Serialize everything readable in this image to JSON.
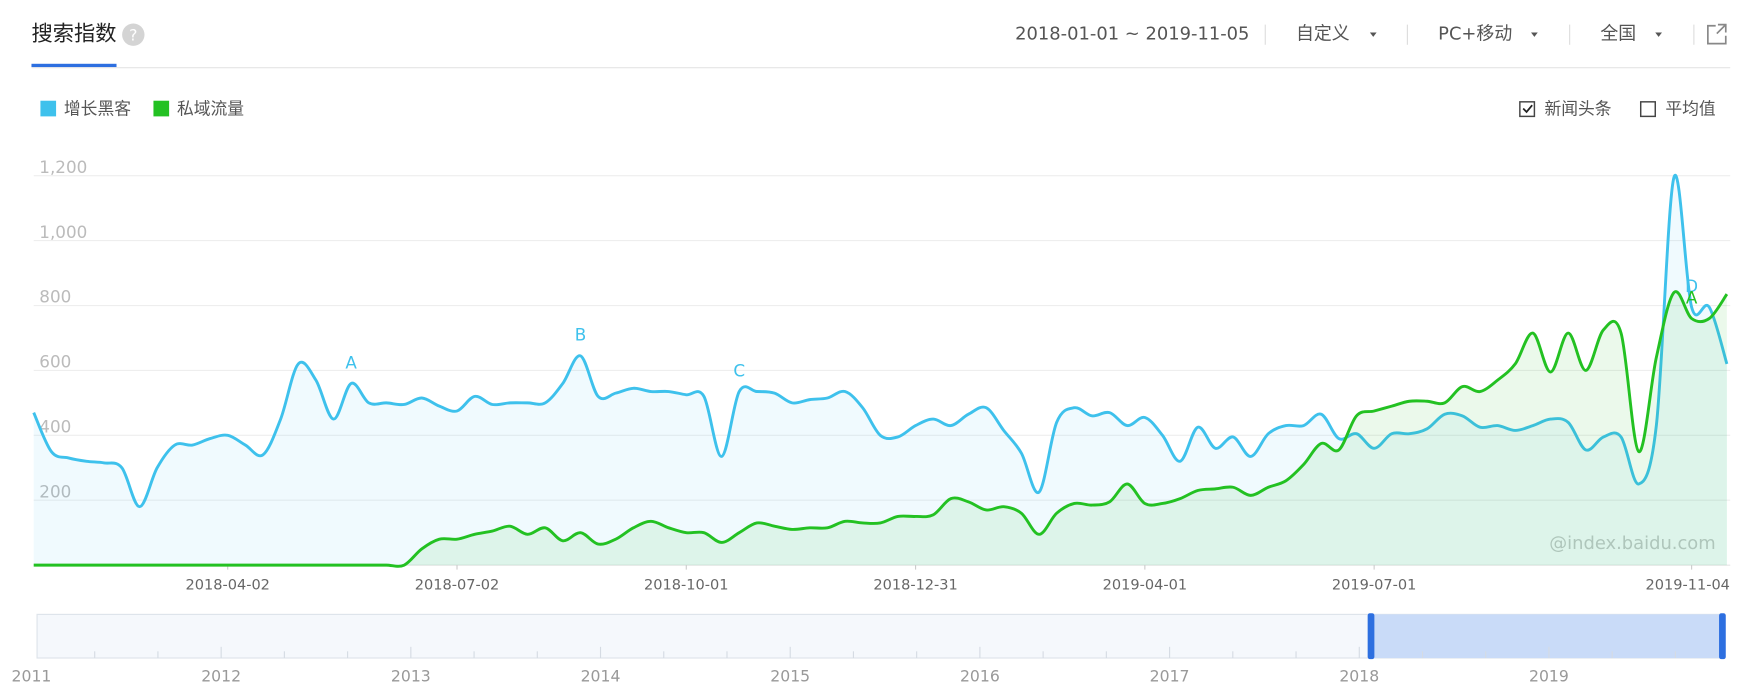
{
  "header": {
    "title": "搜索指数",
    "help": "?"
  },
  "controls": {
    "date_range": "2018-01-01 ~ 2019-11-05",
    "period": "自定义",
    "device": "PC+移动",
    "region": "全国"
  },
  "options": [
    {
      "label": "新闻头条",
      "checked": true
    },
    {
      "label": "平均值",
      "checked": false
    }
  ],
  "watermark": "@index.baidu.com",
  "navigator": {
    "years": [
      "2011",
      "2012",
      "2013",
      "2014",
      "2015",
      "2016",
      "2017",
      "2018",
      "2019"
    ]
  },
  "chart_data": {
    "type": "line",
    "x": [
      "2018-01-15",
      "2018-01-22",
      "2018-01-29",
      "2018-02-05",
      "2018-02-12",
      "2018-02-19",
      "2018-02-26",
      "2018-03-05",
      "2018-03-12",
      "2018-03-19",
      "2018-03-26",
      "2018-04-02",
      "2018-04-09",
      "2018-04-16",
      "2018-04-23",
      "2018-04-30",
      "2018-05-07",
      "2018-05-14",
      "2018-05-21",
      "2018-05-28",
      "2018-06-04",
      "2018-06-11",
      "2018-06-18",
      "2018-06-25",
      "2018-07-02",
      "2018-07-09",
      "2018-07-16",
      "2018-07-23",
      "2018-07-30",
      "2018-08-06",
      "2018-08-13",
      "2018-08-20",
      "2018-08-27",
      "2018-09-03",
      "2018-09-10",
      "2018-09-17",
      "2018-09-24",
      "2018-10-01",
      "2018-10-08",
      "2018-10-15",
      "2018-10-22",
      "2018-10-29",
      "2018-11-05",
      "2018-11-12",
      "2018-11-19",
      "2018-11-26",
      "2018-12-03",
      "2018-12-10",
      "2018-12-17",
      "2018-12-24",
      "2018-12-31",
      "2019-01-07",
      "2019-01-14",
      "2019-01-21",
      "2019-01-28",
      "2019-02-04",
      "2019-02-11",
      "2019-02-18",
      "2019-02-25",
      "2019-03-04",
      "2019-03-11",
      "2019-03-18",
      "2019-03-25",
      "2019-04-01",
      "2019-04-08",
      "2019-04-15",
      "2019-04-22",
      "2019-04-29",
      "2019-05-06",
      "2019-05-13",
      "2019-05-20",
      "2019-05-27",
      "2019-06-03",
      "2019-06-10",
      "2019-06-17",
      "2019-06-24",
      "2019-07-01",
      "2019-07-08",
      "2019-07-15",
      "2019-07-22",
      "2019-07-29",
      "2019-08-05",
      "2019-08-12",
      "2019-08-19",
      "2019-08-26",
      "2019-09-02",
      "2019-09-09",
      "2019-09-16",
      "2019-09-23",
      "2019-09-30",
      "2019-10-07",
      "2019-10-14",
      "2019-10-21",
      "2019-10-28",
      "2019-11-04",
      "2019-11-11",
      "2019-11-18"
    ],
    "xticks": [
      "2018-04-02",
      "2018-07-02",
      "2018-10-01",
      "2018-12-31",
      "2019-04-01",
      "2019-07-01",
      "2019-11-04"
    ],
    "ylim": [
      0,
      1200
    ],
    "yticks": [
      200,
      400,
      600,
      800,
      {
        "value": 1000,
        "label": "1,000"
      },
      {
        "value": 1200,
        "label": "1,200"
      }
    ],
    "grid": true,
    "series": [
      {
        "name": "增长黑客",
        "color": "#3ec1ec",
        "values": [
          470,
          350,
          330,
          320,
          315,
          300,
          180,
          300,
          370,
          370,
          390,
          400,
          370,
          340,
          450,
          620,
          570,
          450,
          560,
          500,
          500,
          495,
          515,
          490,
          475,
          520,
          495,
          500,
          500,
          500,
          560,
          645,
          520,
          530,
          545,
          535,
          535,
          525,
          520,
          335,
          535,
          535,
          530,
          500,
          510,
          515,
          535,
          485,
          400,
          395,
          430,
          450,
          430,
          465,
          485,
          415,
          345,
          225,
          440,
          485,
          460,
          470,
          430,
          455,
          400,
          320,
          425,
          360,
          395,
          335,
          405,
          430,
          430,
          465,
          390,
          405,
          360,
          405,
          405,
          420,
          465,
          460,
          425,
          430,
          415,
          430,
          450,
          440,
          355,
          395,
          395,
          250,
          430,
          1195,
          795,
          795,
          620
        ],
        "annotations": [
          {
            "label": "A",
            "x": "2018-05-21"
          },
          {
            "label": "B",
            "x": "2018-08-20"
          },
          {
            "label": "C",
            "x": "2018-10-22"
          },
          {
            "label": "D",
            "x": "2019-11-04"
          }
        ]
      },
      {
        "name": "私域流量",
        "color": "#23c122",
        "values": [
          0,
          0,
          0,
          0,
          0,
          0,
          0,
          0,
          0,
          0,
          0,
          0,
          0,
          0,
          0,
          0,
          0,
          0,
          0,
          0,
          0,
          0,
          50,
          80,
          80,
          95,
          105,
          120,
          95,
          115,
          75,
          100,
          65,
          80,
          115,
          135,
          115,
          100,
          100,
          70,
          100,
          130,
          120,
          110,
          115,
          115,
          135,
          130,
          130,
          150,
          150,
          155,
          205,
          195,
          170,
          180,
          160,
          95,
          160,
          190,
          185,
          195,
          250,
          190,
          190,
          205,
          230,
          235,
          240,
          215,
          240,
          260,
          310,
          375,
          355,
          460,
          475,
          490,
          505,
          505,
          500,
          550,
          535,
          570,
          620,
          715,
          595,
          715,
          600,
          725,
          715,
          350,
          640,
          840,
          760,
          760,
          835
        ],
        "annotations": [
          {
            "label": "A",
            "x": "2019-11-04"
          }
        ]
      }
    ]
  }
}
